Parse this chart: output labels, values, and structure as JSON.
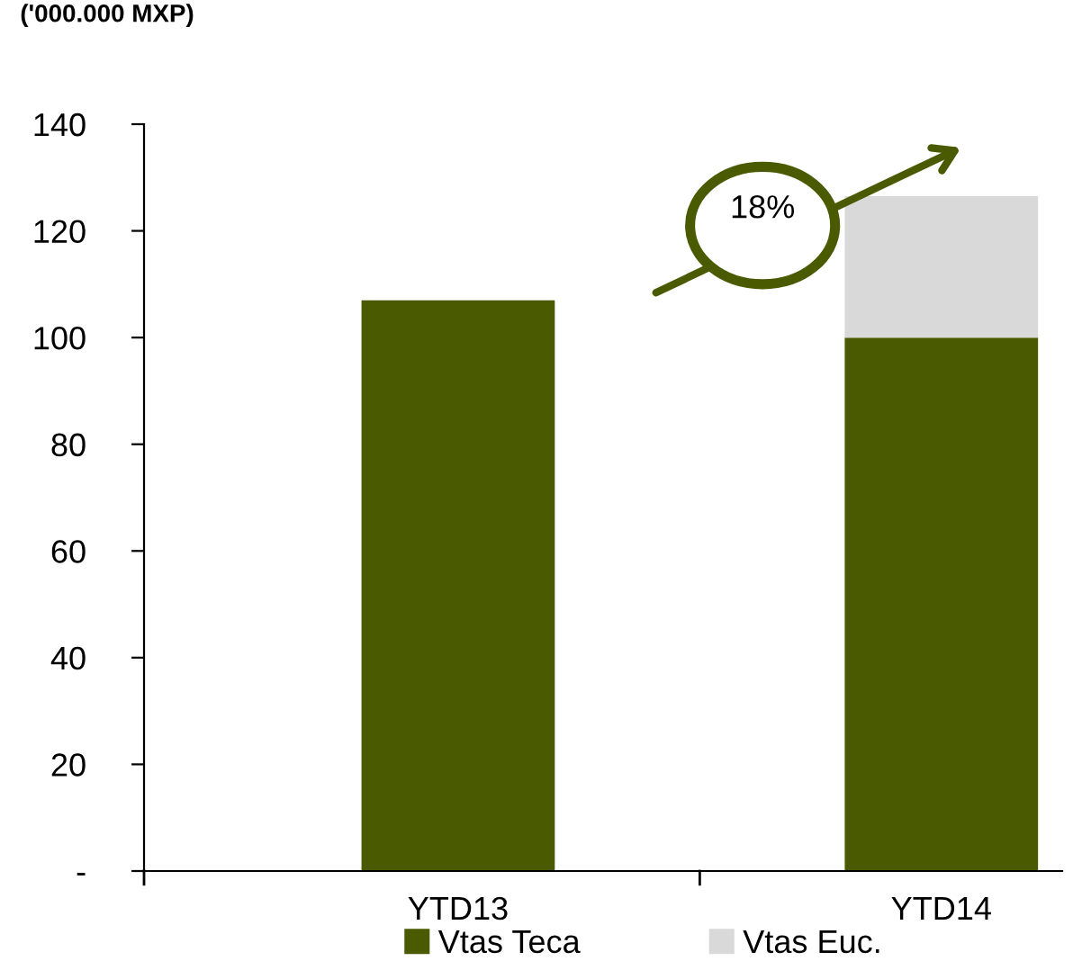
{
  "chart_data": {
    "type": "bar",
    "ylabel": "('000.000 MXP)",
    "categories": [
      "YTD13",
      "YTD14"
    ],
    "stacked": true,
    "series": [
      {
        "name": "Vtas Teca",
        "color": "#4a5a00",
        "values": [
          107,
          100
        ]
      },
      {
        "name": "Vtas Euc.",
        "color": "#d9d9d9",
        "values": [
          null,
          26.5
        ]
      }
    ],
    "ylim": [
      0,
      140
    ],
    "yticks": [
      {
        "value": 0,
        "label": "-"
      },
      20,
      40,
      60,
      80,
      100,
      120,
      140
    ],
    "annotations": [
      "18%"
    ],
    "legend": "bottom",
    "grid": false
  }
}
